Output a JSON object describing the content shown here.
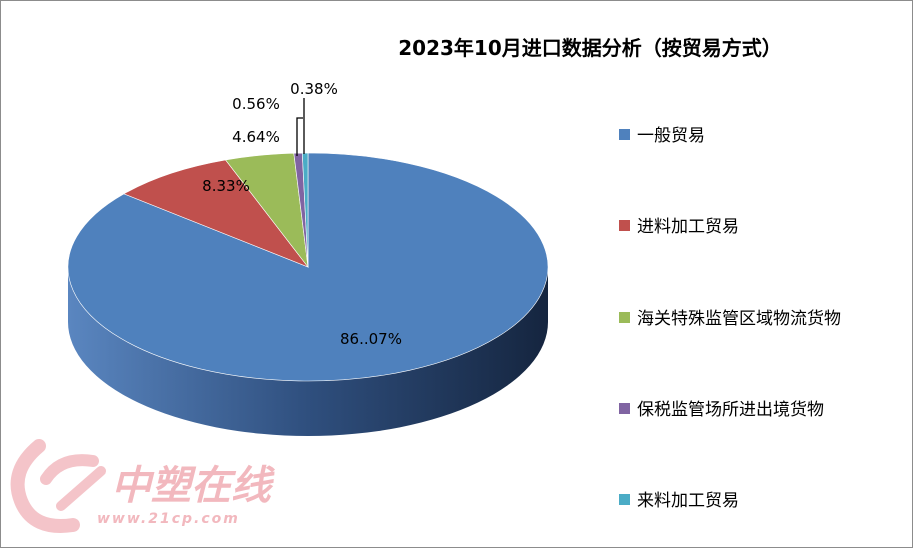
{
  "chart_data": {
    "type": "pie",
    "title": "2023年10月进口数据分析（按贸易方式）",
    "categories": [
      "一般贸易",
      "进料加工贸易",
      "海关特殊监管区域物流货物",
      "保税监管场所进出境货物",
      "来料加工贸易"
    ],
    "values": [
      86.07,
      8.33,
      4.64,
      0.56,
      0.38
    ],
    "data_labels": [
      "86..07%",
      "8.33%",
      "4.64%",
      "0.56%",
      "0.38%"
    ],
    "colors": [
      "#4f81bd",
      "#c0504d",
      "#9bbb59",
      "#8064a2",
      "#4bacc6"
    ],
    "legend_position": "right",
    "three_d": true
  },
  "watermark": {
    "name": "中塑在线",
    "url": "www.21cp.com"
  }
}
